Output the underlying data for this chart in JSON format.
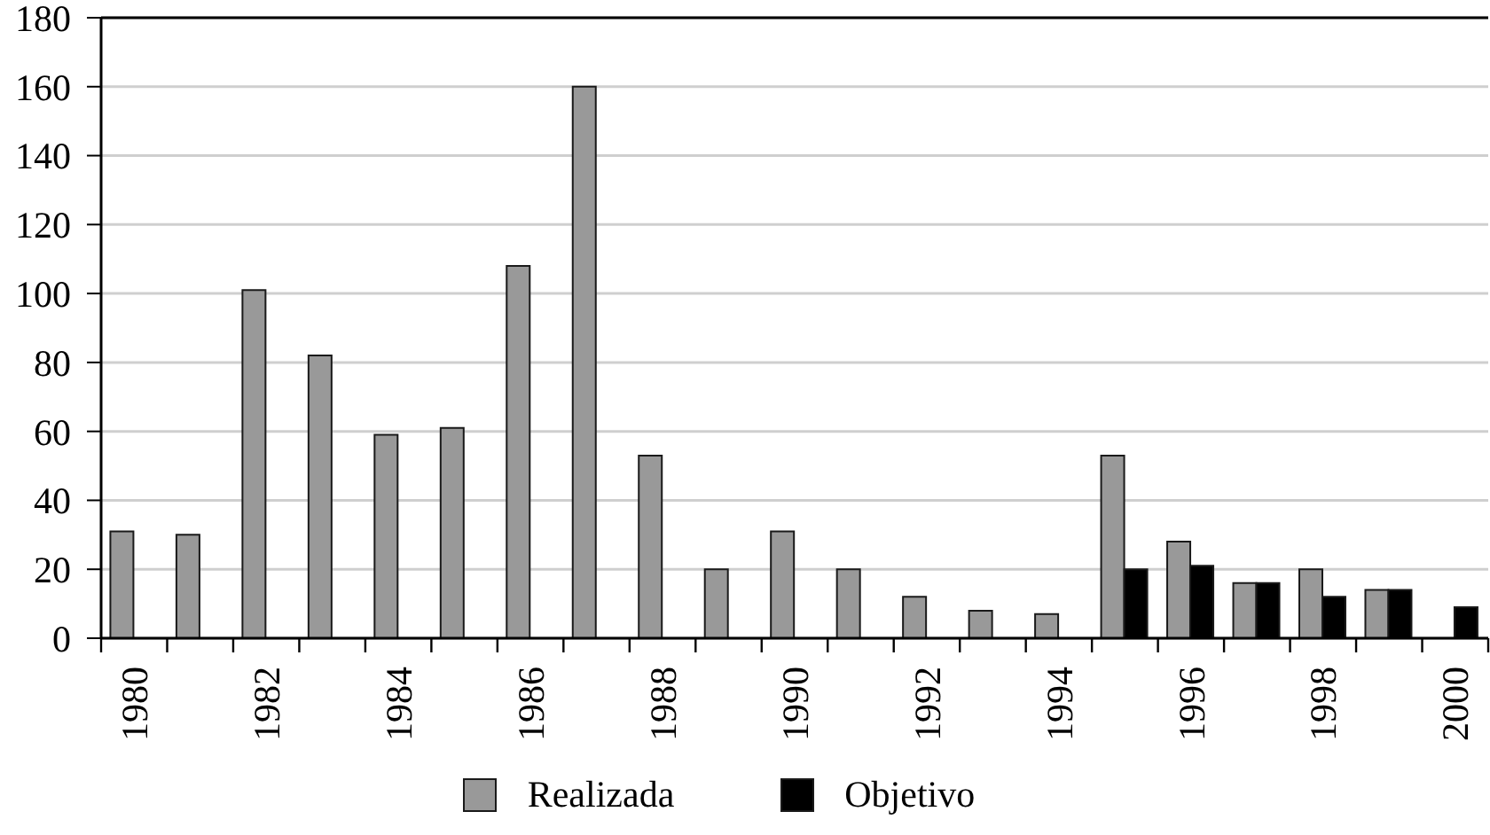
{
  "chart_data": {
    "type": "bar",
    "categories": [
      "1980",
      null,
      "1982",
      null,
      "1984",
      null,
      "1986",
      null,
      "1988",
      null,
      "1990",
      null,
      "1992",
      null,
      "1994",
      null,
      "1996",
      null,
      "1998",
      null,
      "2000"
    ],
    "series": [
      {
        "name": "Realizada",
        "color": "#999999",
        "values": [
          31,
          30,
          101,
          82,
          59,
          61,
          108,
          160,
          53,
          20,
          31,
          20,
          12,
          8,
          7,
          53,
          28,
          16,
          20,
          14,
          null
        ]
      },
      {
        "name": "Objetivo",
        "color": "#000000",
        "values": [
          null,
          null,
          null,
          null,
          null,
          null,
          null,
          null,
          null,
          null,
          null,
          null,
          null,
          null,
          null,
          20,
          21,
          16,
          12,
          14,
          9
        ]
      }
    ],
    "ylim": [
      0,
      180
    ],
    "yticks": [
      0,
      20,
      40,
      60,
      80,
      100,
      120,
      140,
      160,
      180
    ],
    "grid": "y",
    "legend": "bottom"
  }
}
